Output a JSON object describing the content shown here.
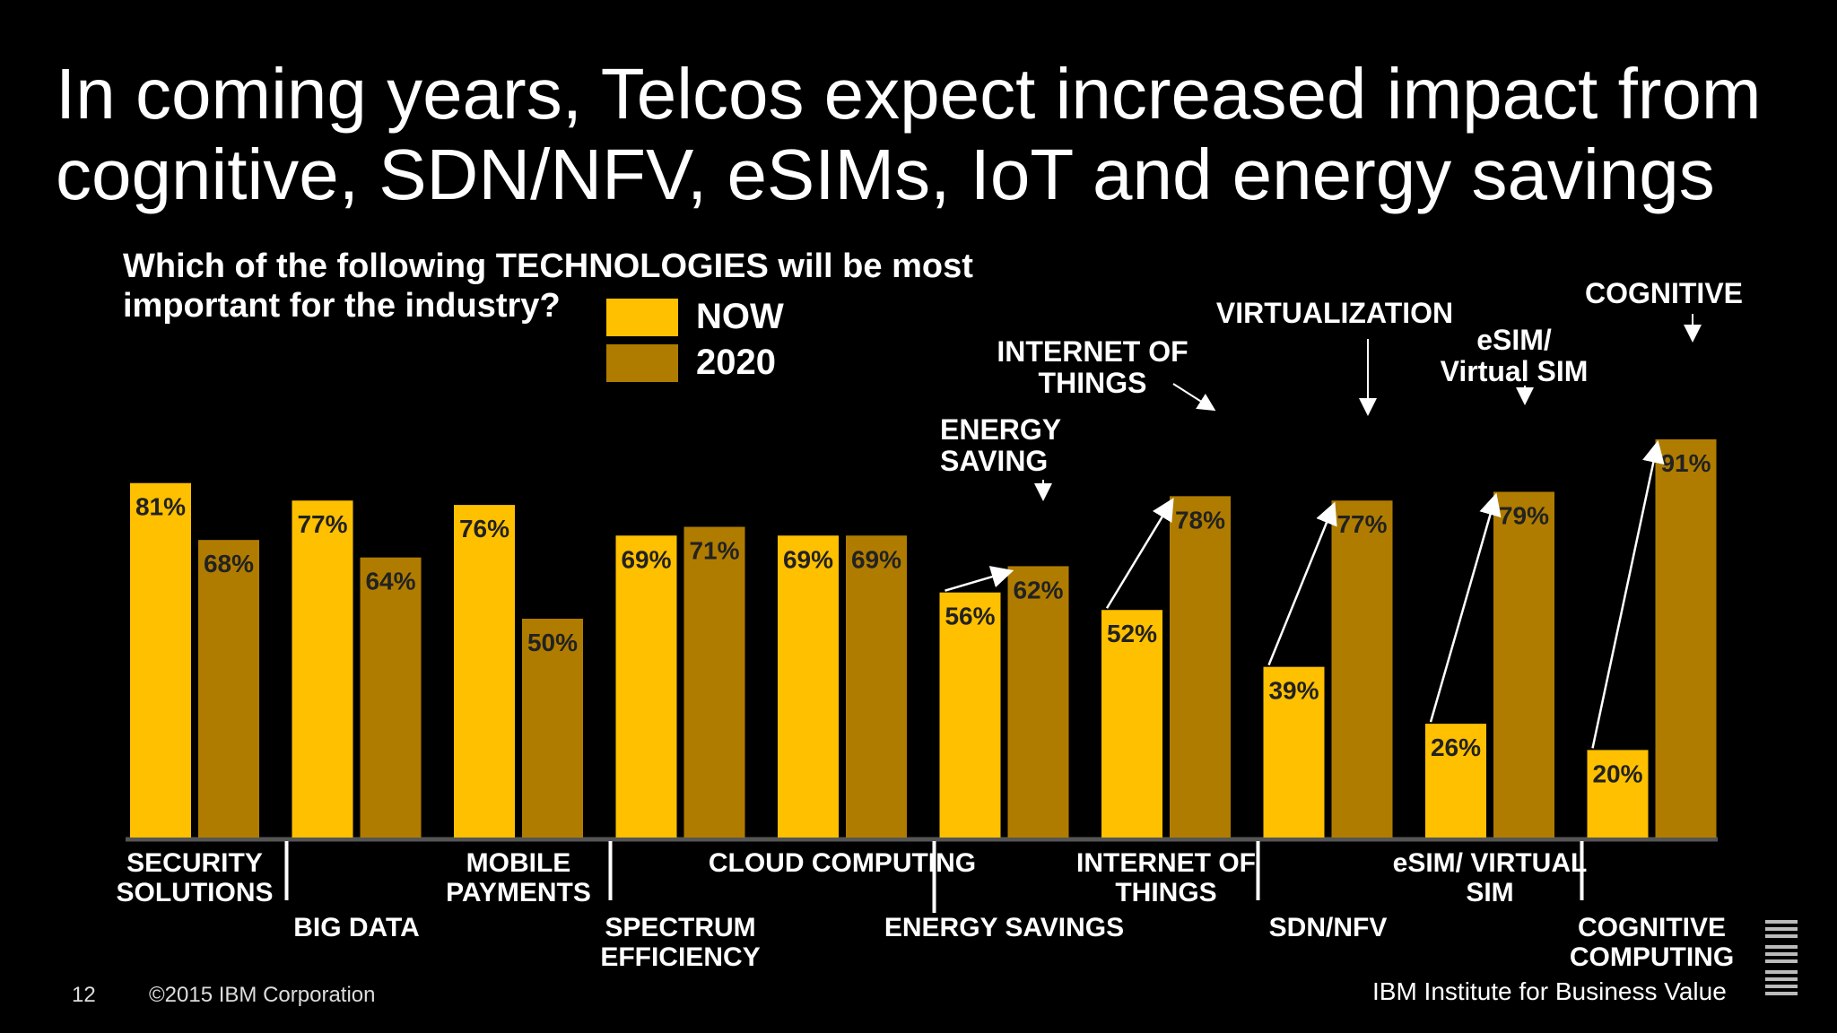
{
  "title": "In coming years, Telcos expect increased impact from\ncognitive, SDN/NFV, eSIMs, IoT and energy savings",
  "question": "Which of the following TECHNOLOGIES will be most\nimportant for the industry?",
  "legend": [
    {
      "label": "NOW",
      "color": "#FFC000"
    },
    {
      "label": "2020",
      "color": "#B8860B"
    }
  ],
  "footer": {
    "page_number": "12",
    "copyright": "©2015 IBM Corporation",
    "brand_line": "IBM Institute for Business Value"
  },
  "colors": {
    "now": "#FFC000",
    "future": "#B07C00",
    "label_text": "#222222",
    "background": "#000000"
  },
  "chart_data": {
    "type": "bar",
    "title": "",
    "xlabel": "",
    "ylabel": "",
    "ylim": [
      0,
      100
    ],
    "categories": [
      "SECURITY\nSOLUTIONS",
      "BIG DATA",
      "MOBILE\nPAYMENTS",
      "SPECTRUM\nEFFICIENCY",
      "CLOUD COMPUTING",
      "ENERGY SAVINGS",
      "INTERNET OF\nTHINGS",
      "SDN/NFV",
      "eSIM/ VIRTUAL\nSIM",
      "COGNITIVE\nCOMPUTING"
    ],
    "series": [
      {
        "name": "NOW",
        "values": [
          81,
          77,
          76,
          69,
          69,
          56,
          52,
          39,
          26,
          20
        ],
        "labels": [
          "81%",
          "77%",
          "76%",
          "69%",
          "69%",
          "56%",
          "52%",
          "39%",
          "26%",
          "20%"
        ]
      },
      {
        "name": "2020",
        "values": [
          68,
          64,
          50,
          71,
          69,
          62,
          78,
          77,
          79,
          91
        ],
        "labels": [
          "68%",
          "64%",
          "50%",
          "71%",
          "69%",
          "62%",
          "78%",
          "77%",
          "79%",
          "91%"
        ]
      }
    ],
    "annotations": [
      {
        "category_index": 5,
        "text": "ENERGY\nSAVING"
      },
      {
        "category_index": 6,
        "text": "INTERNET OF\nTHINGS"
      },
      {
        "category_index": 7,
        "text": "VIRTUALIZATION"
      },
      {
        "category_index": 8,
        "text": "eSIM/\nVirtual SIM"
      },
      {
        "category_index": 9,
        "text": "COGNITIVE"
      }
    ]
  }
}
